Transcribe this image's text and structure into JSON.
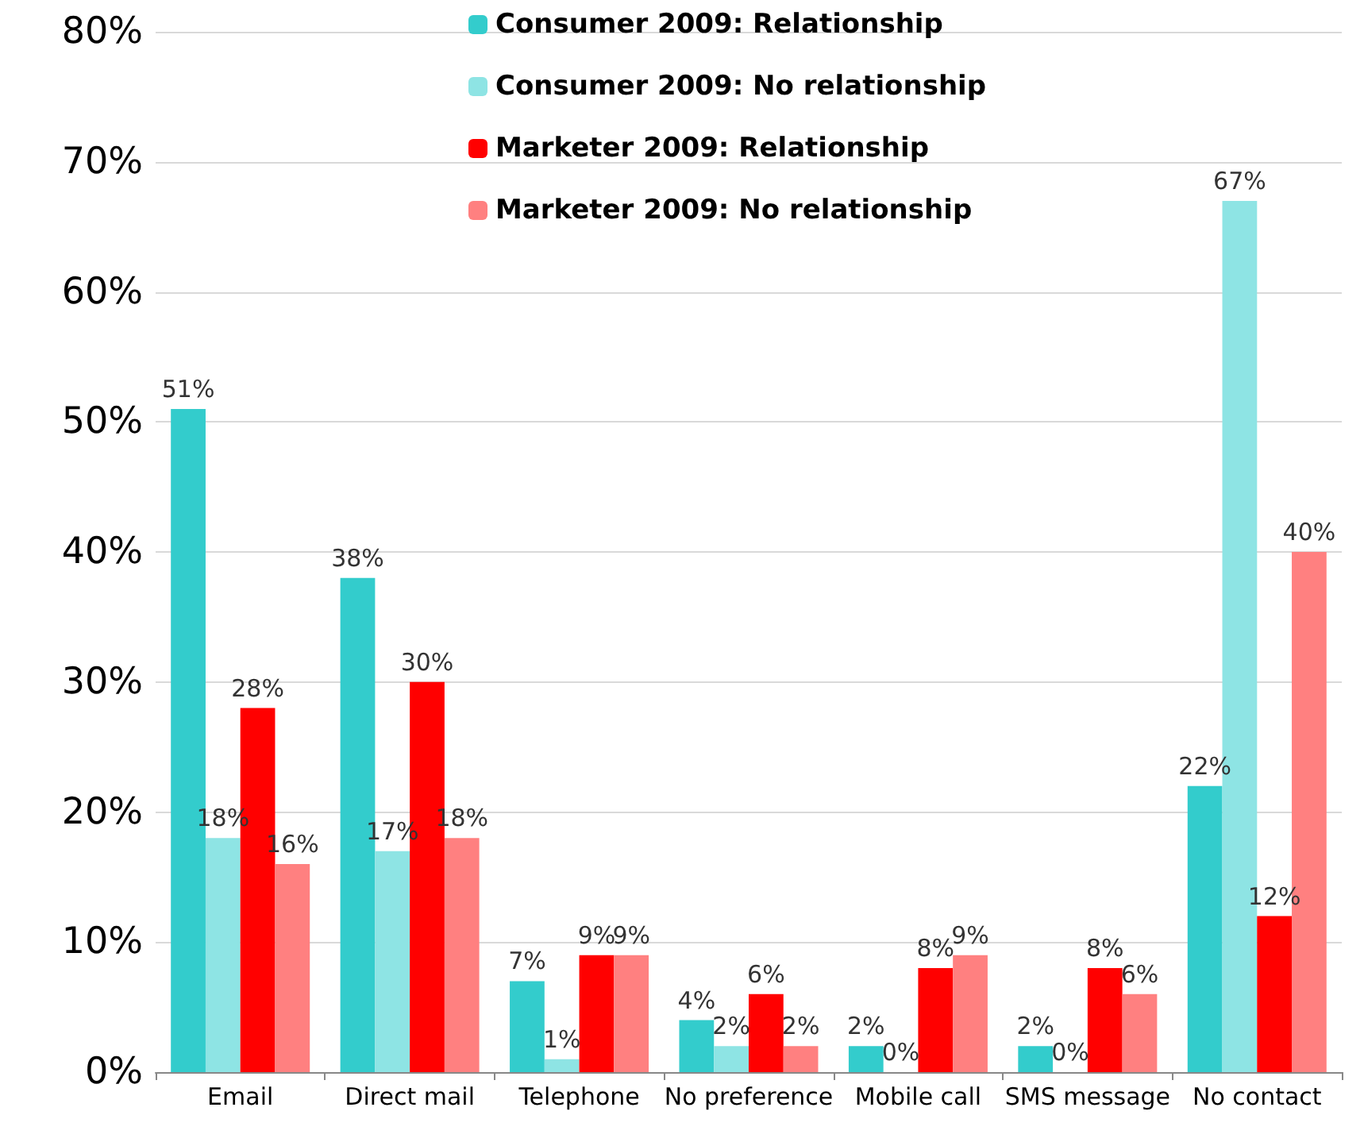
{
  "chart_data": {
    "type": "bar",
    "categories": [
      "Email",
      "Direct mail",
      "Telephone",
      "No preference",
      "Mobile call",
      "SMS message",
      "No contact"
    ],
    "series": [
      {
        "name": "Consumer 2009: Relationship",
        "color": "#33cccc",
        "values": [
          51,
          38,
          7,
          4,
          2,
          2,
          22
        ],
        "value_labels": [
          "51%",
          "38%",
          "7%",
          "4%",
          "2%",
          "2%",
          "22%"
        ]
      },
      {
        "name": "Consumer 2009: No relationship",
        "color": "#8ee4e4",
        "values": [
          18,
          17,
          1,
          2,
          0,
          0,
          67
        ],
        "value_labels": [
          "18%",
          "17%",
          "1%",
          "2%",
          "0%",
          "0%",
          "67%"
        ]
      },
      {
        "name": "Marketer 2009: Relationship",
        "color": "#ff0000",
        "values": [
          28,
          30,
          9,
          6,
          8,
          8,
          12
        ],
        "value_labels": [
          "28%",
          "30%",
          "9%",
          "6%",
          "8%",
          "8%",
          "12%"
        ]
      },
      {
        "name": "Marketer 2009: No relationship",
        "color": "#ff8080",
        "values": [
          16,
          18,
          9,
          2,
          9,
          6,
          40
        ],
        "value_labels": [
          "16%",
          "18%",
          "9%",
          "2%",
          "9%",
          "6%",
          "40%"
        ]
      }
    ],
    "ylim": [
      0,
      80
    ],
    "yticks": [
      {
        "value": 0,
        "label": "0%"
      },
      {
        "value": 10,
        "label": "10%"
      },
      {
        "value": 20,
        "label": "20%"
      },
      {
        "value": 30,
        "label": "30%"
      },
      {
        "value": 40,
        "label": "40%"
      },
      {
        "value": 50,
        "label": "50%"
      },
      {
        "value": 60,
        "label": "60%"
      },
      {
        "value": 70,
        "label": "70%"
      },
      {
        "value": 80,
        "label": "80%"
      }
    ],
    "grid": "y",
    "legend": "top"
  }
}
